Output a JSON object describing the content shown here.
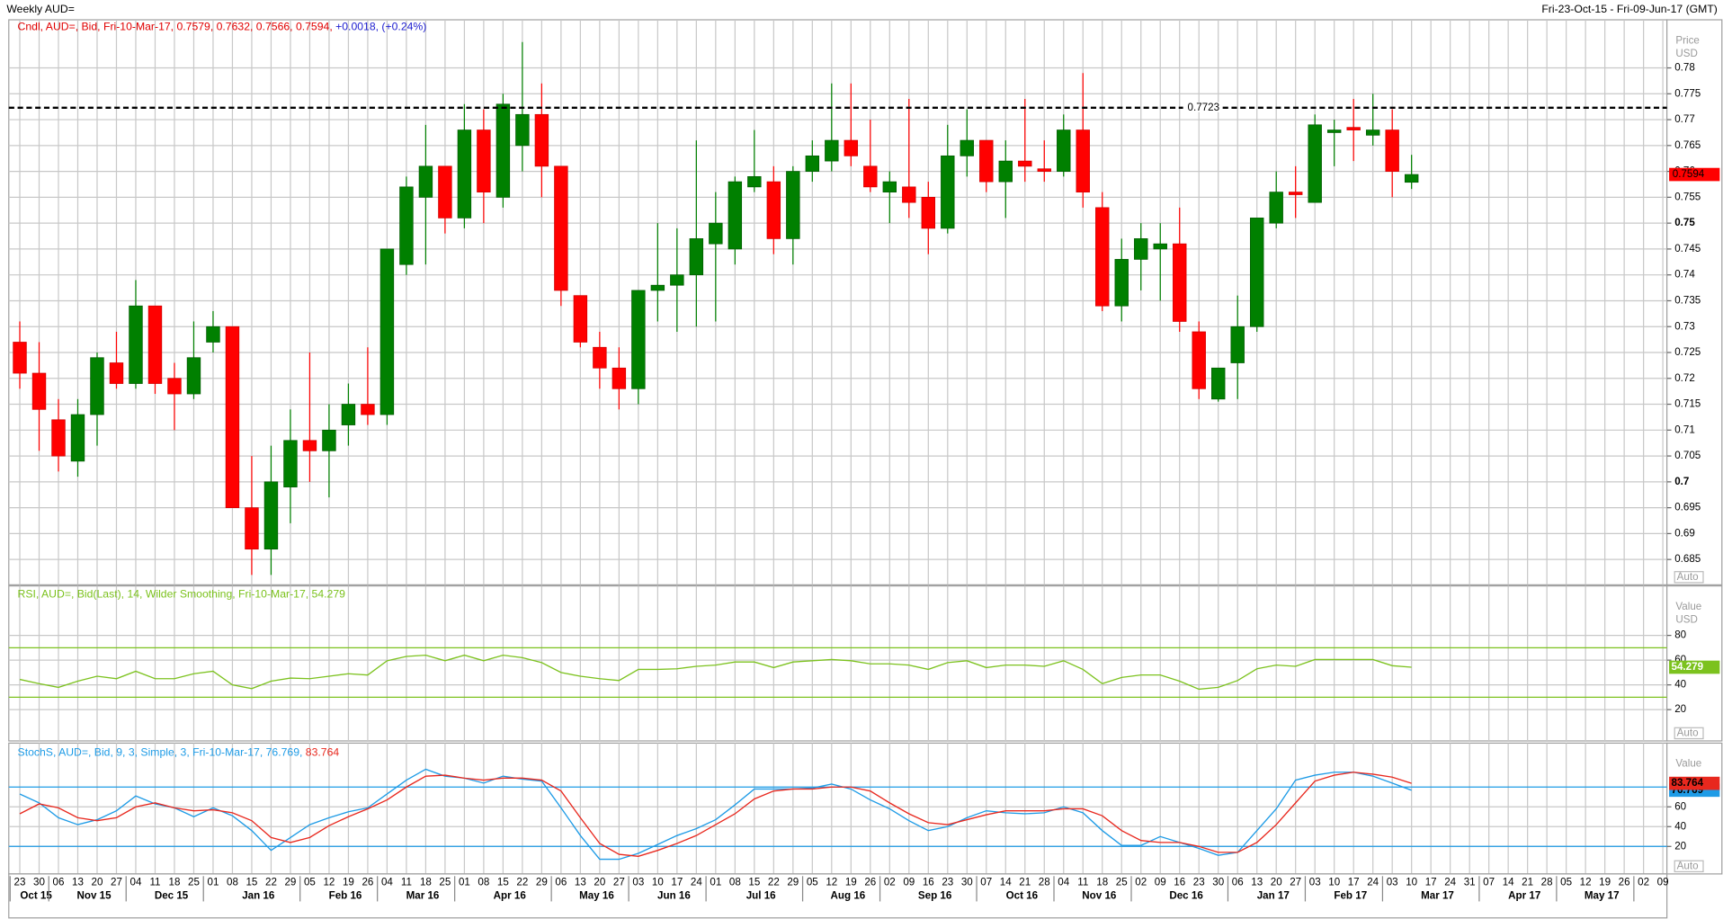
{
  "header": {
    "title": "Weekly AUD=",
    "range": "Fri-23-Oct-15 - Fri-09-Jun-17 (GMT)"
  },
  "x_axis": {
    "days": [
      "23",
      "30",
      "06",
      "13",
      "20",
      "27",
      "04",
      "11",
      "18",
      "25",
      "01",
      "08",
      "15",
      "22",
      "29",
      "05",
      "12",
      "19",
      "26",
      "04",
      "11",
      "18",
      "25",
      "01",
      "08",
      "15",
      "22",
      "29",
      "06",
      "13",
      "20",
      "27",
      "03",
      "10",
      "17",
      "24",
      "01",
      "08",
      "15",
      "22",
      "29",
      "05",
      "12",
      "19",
      "26",
      "02",
      "09",
      "16",
      "23",
      "30",
      "07",
      "14",
      "21",
      "28",
      "04",
      "11",
      "18",
      "25",
      "02",
      "09",
      "16",
      "23",
      "30",
      "06",
      "13",
      "20",
      "27",
      "03",
      "10",
      "17",
      "24",
      "03",
      "10",
      "17",
      "24",
      "31",
      "07",
      "14",
      "21",
      "28",
      "05",
      "12",
      "19",
      "26",
      "02",
      "09"
    ],
    "months": [
      "Oct 15",
      "Nov 15",
      "Dec 15",
      "Jan 16",
      "Feb 16",
      "Mar 16",
      "Apr 16",
      "May 16",
      "Jun 16",
      "Jul 16",
      "Aug 16",
      "Sep 16",
      "Oct 16",
      "Nov 16",
      "Dec 16",
      "Jan 17",
      "Feb 17",
      "Mar 17",
      "Apr 17",
      "May 17"
    ]
  },
  "chart_data": [
    {
      "type": "candlestick",
      "legend": "Cndl, AUD=, Bid, Fri-10-Mar-17, 0.7579, 0.7632, 0.7566, 0.7594,",
      "change": "+0.0018, (+0.24%)",
      "axis_title": [
        "Price",
        "USD"
      ],
      "auto_label": "Auto",
      "up_color": "#008000",
      "down_color": "#ff0000",
      "open": [
        0.727,
        0.721,
        0.712,
        0.704,
        0.713,
        0.723,
        0.719,
        0.734,
        0.72,
        0.717,
        0.727,
        0.73,
        0.695,
        0.687,
        0.699,
        0.708,
        0.706,
        0.711,
        0.715,
        0.713,
        0.742,
        0.755,
        0.761,
        0.751,
        0.768,
        0.755,
        0.765,
        0.771,
        0.761,
        0.736,
        0.726,
        0.722,
        0.718,
        0.737,
        0.738,
        0.74,
        0.746,
        0.745,
        0.757,
        0.758,
        0.747,
        0.76,
        0.762,
        0.766,
        0.761,
        0.756,
        0.757,
        0.755,
        0.749,
        0.763,
        0.766,
        0.758,
        0.762,
        0.7605,
        0.76,
        0.768,
        0.753,
        0.734,
        0.743,
        0.745,
        0.746,
        0.729,
        0.716,
        0.723,
        0.73,
        0.75,
        0.756,
        0.754,
        0.7675,
        0.7685,
        0.767,
        0.768,
        0.7579
      ],
      "high": [
        0.731,
        0.727,
        0.716,
        0.716,
        0.725,
        0.729,
        0.739,
        0.734,
        0.723,
        0.731,
        0.733,
        0.73,
        0.705,
        0.707,
        0.714,
        0.725,
        0.715,
        0.719,
        0.726,
        0.745,
        0.759,
        0.769,
        0.761,
        0.773,
        0.772,
        0.775,
        0.785,
        0.777,
        0.761,
        0.736,
        0.729,
        0.726,
        0.737,
        0.75,
        0.749,
        0.766,
        0.756,
        0.759,
        0.768,
        0.761,
        0.761,
        0.766,
        0.777,
        0.777,
        0.77,
        0.76,
        0.774,
        0.758,
        0.769,
        0.772,
        0.766,
        0.766,
        0.774,
        0.766,
        0.771,
        0.779,
        0.756,
        0.747,
        0.75,
        0.75,
        0.753,
        0.731,
        0.722,
        0.736,
        0.751,
        0.76,
        0.761,
        0.771,
        0.77,
        0.774,
        0.775,
        0.772,
        0.7632
      ],
      "low": [
        0.718,
        0.706,
        0.702,
        0.701,
        0.707,
        0.718,
        0.718,
        0.717,
        0.71,
        0.716,
        0.725,
        0.695,
        0.682,
        0.682,
        0.692,
        0.7,
        0.697,
        0.707,
        0.711,
        0.711,
        0.74,
        0.742,
        0.748,
        0.749,
        0.75,
        0.753,
        0.76,
        0.755,
        0.734,
        0.726,
        0.718,
        0.714,
        0.715,
        0.731,
        0.729,
        0.73,
        0.731,
        0.742,
        0.756,
        0.744,
        0.742,
        0.758,
        0.76,
        0.761,
        0.756,
        0.75,
        0.751,
        0.744,
        0.748,
        0.759,
        0.756,
        0.751,
        0.758,
        0.758,
        0.759,
        0.753,
        0.733,
        0.731,
        0.737,
        0.735,
        0.729,
        0.716,
        0.7155,
        0.716,
        0.729,
        0.749,
        0.751,
        0.754,
        0.761,
        0.762,
        0.765,
        0.755,
        0.7566
      ],
      "close": [
        0.721,
        0.714,
        0.705,
        0.713,
        0.724,
        0.719,
        0.734,
        0.719,
        0.717,
        0.724,
        0.73,
        0.695,
        0.687,
        0.7,
        0.708,
        0.706,
        0.71,
        0.715,
        0.713,
        0.745,
        0.757,
        0.761,
        0.751,
        0.768,
        0.756,
        0.773,
        0.771,
        0.761,
        0.737,
        0.727,
        0.722,
        0.718,
        0.737,
        0.738,
        0.74,
        0.747,
        0.75,
        0.758,
        0.759,
        0.747,
        0.76,
        0.763,
        0.766,
        0.763,
        0.757,
        0.758,
        0.754,
        0.749,
        0.763,
        0.766,
        0.758,
        0.762,
        0.761,
        0.76,
        0.768,
        0.756,
        0.734,
        0.743,
        0.747,
        0.746,
        0.731,
        0.718,
        0.722,
        0.73,
        0.751,
        0.756,
        0.7555,
        0.769,
        0.768,
        0.768,
        0.768,
        0.76,
        0.7594
      ],
      "reference_line": 0.7723,
      "ylim": [
        0.6801,
        0.7893
      ],
      "yticks": [
        0.685,
        0.69,
        0.695,
        0.7,
        0.705,
        0.71,
        0.715,
        0.72,
        0.725,
        0.73,
        0.735,
        0.74,
        0.745,
        0.75,
        0.755,
        0.76,
        0.765,
        0.77,
        0.775,
        0.78
      ],
      "grid": true
    },
    {
      "type": "line",
      "legend": "RSI, AUD=, Bid(Last), 14, Wilder Smoothing, Fri-10-Mar-17, 54.279",
      "axis_title": [
        "Value",
        "USD"
      ],
      "auto_label": "Auto",
      "levels": [
        70,
        30
      ],
      "series": [
        {
          "name": "RSI",
          "color": "#7cc21e",
          "values": [
            44.4,
            41,
            38,
            43,
            47,
            45,
            51,
            45,
            45,
            49,
            51,
            40,
            37,
            43,
            45.5,
            45,
            47,
            49,
            48,
            59.5,
            63,
            64,
            59.5,
            64,
            59.5,
            64,
            62,
            58,
            50,
            47,
            45,
            43.5,
            52.5,
            52.5,
            53,
            55,
            56,
            58.5,
            58.5,
            54,
            58.5,
            59.5,
            60.5,
            59.5,
            57,
            57,
            56,
            52.5,
            58,
            59.5,
            54,
            56,
            56,
            55,
            59.5,
            52.5,
            41,
            46,
            48,
            48,
            43,
            36.5,
            38,
            43.5,
            53,
            56,
            55,
            60.5,
            60.5,
            60.5,
            60.5,
            55.5,
            54.279
          ]
        }
      ],
      "ylim": [
        -5.3,
        120
      ],
      "yticks": [
        20,
        40,
        60,
        80
      ],
      "grid": true
    },
    {
      "type": "line",
      "legend": "StochS, AUD=, Bid, 9, 3, Simple, 3, Fri-10-Mar-17, 76.769,",
      "axis_title": [
        "Value"
      ],
      "auto_label": "Auto",
      "levels": [
        80,
        20
      ],
      "level_color": "#1e9be6",
      "series": [
        {
          "name": "%K",
          "color": "#1e9be6",
          "values": [
            73,
            64,
            49,
            42,
            47,
            56,
            71,
            63,
            59,
            50,
            59,
            51,
            36,
            16,
            29,
            42,
            49,
            55,
            59,
            73,
            87,
            98,
            91,
            89,
            84,
            91,
            88,
            86,
            59,
            31,
            7,
            7,
            13,
            22,
            31,
            38,
            47,
            62,
            78,
            78,
            78,
            79,
            83,
            78,
            67,
            58,
            46,
            36,
            40,
            49,
            56,
            54,
            53,
            54,
            60,
            54,
            36,
            21,
            21,
            30,
            24,
            18,
            11,
            14,
            36,
            58,
            87,
            92,
            95,
            95,
            91,
            84,
            76.769
          ]
        },
        {
          "name": "%D",
          "color": "#e8281e",
          "values": [
            53,
            63,
            59,
            49,
            46,
            49,
            60,
            64,
            59,
            56,
            57,
            54,
            46,
            29,
            24,
            29,
            41,
            50,
            58,
            67,
            80,
            91,
            92,
            89,
            87,
            89,
            89,
            87,
            76,
            49,
            23,
            12,
            10,
            16,
            23,
            31,
            42,
            53,
            68,
            76,
            78,
            78,
            80,
            80,
            76,
            64,
            53,
            44,
            42,
            47,
            52,
            56,
            56,
            56,
            58,
            58,
            51,
            36,
            26,
            24,
            24,
            20,
            14,
            14,
            24,
            42,
            64,
            86,
            92,
            95,
            93,
            90,
            83.764
          ]
        }
      ],
      "ylim": [
        -7.8,
        124.4
      ],
      "yticks": [
        20,
        40,
        60
      ],
      "grid": true
    }
  ]
}
